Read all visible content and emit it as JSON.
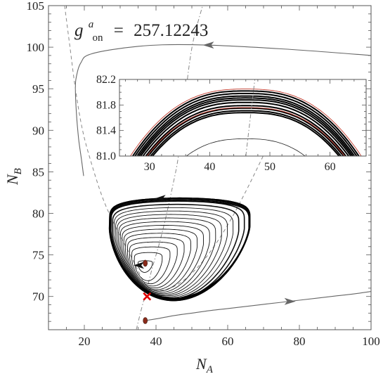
{
  "chart_data": {
    "type": "line",
    "title": "",
    "annotation": {
      "symbol": "g",
      "superscript": "a",
      "subscript": "on",
      "equals": "=",
      "value": "257.12243"
    },
    "xlabel": {
      "symbol": "N",
      "subscript": "A"
    },
    "ylabel": {
      "symbol": "N",
      "subscript": "B"
    },
    "xlim": [
      10,
      100
    ],
    "ylim": [
      66,
      105
    ],
    "xticks": [
      "20",
      "40",
      "60",
      "80",
      "100"
    ],
    "yticks": [
      "70",
      "75",
      "80",
      "85",
      "90",
      "95",
      "100",
      "105"
    ],
    "grid": false,
    "series": [
      {
        "role": "outer-trajectory-top",
        "style": "solid-gray-arrow-left",
        "x": [
          100,
          75,
          50,
          35,
          22,
          19,
          17.8,
          17.5,
          17.8,
          18.4,
          19.2,
          19.8
        ],
        "y": [
          99,
          99.8,
          100.3,
          100.1,
          99.2,
          98.1,
          96.5,
          95,
          92,
          89,
          86.5,
          84.5
        ]
      },
      {
        "role": "outer-trajectory-bottom",
        "style": "solid-gray-arrow-right",
        "x": [
          37,
          40,
          45,
          50,
          55,
          60,
          65,
          70,
          75,
          80,
          85,
          90,
          95,
          100
        ],
        "y": [
          67.1,
          67.3,
          67.7,
          68.0,
          68.3,
          68.55,
          68.8,
          69.05,
          69.3,
          69.55,
          69.8,
          70.05,
          70.3,
          70.6
        ]
      },
      {
        "role": "nullcline-dashed",
        "style": "dashed-gray",
        "x": [
          14.5,
          16,
          17.5,
          19.5,
          22,
          25,
          28,
          31,
          34,
          37,
          40,
          45,
          50,
          55,
          60,
          65,
          70
        ],
        "y": [
          105,
          100,
          95,
          90,
          86,
          82,
          79,
          76.5,
          74,
          71.5,
          70.7,
          71.2,
          72.8,
          75.3,
          78.6,
          82.6,
          87
        ]
      },
      {
        "role": "nullcline-dashdot",
        "style": "dashdot-gray",
        "x": [
          34.5,
          36,
          37.5,
          39,
          41,
          43,
          45,
          46,
          47,
          48,
          49,
          50.5,
          53
        ],
        "y": [
          66,
          68.6,
          71,
          73.5,
          76.5,
          80,
          84,
          86.2,
          89.2,
          93,
          97,
          101,
          105
        ]
      },
      {
        "role": "limit-cycle",
        "style": "solid-black-thick",
        "cx": 46.5,
        "top": 81.85,
        "bottom": 69.5,
        "left": 27,
        "right": 66.2,
        "skew": 0.18
      }
    ],
    "spiral_loops": 16,
    "points": [
      {
        "label": "stable-fixed-point",
        "x": 37,
        "y": 74,
        "marker": "dot",
        "color": "#8b2a1a"
      },
      {
        "label": "saddle-point",
        "x": 37.5,
        "y": 70,
        "marker": "x",
        "color": "#e00000"
      },
      {
        "label": "starting-point",
        "x": 37,
        "y": 67.1,
        "marker": "dot",
        "color": "#8b2a1a"
      }
    ],
    "inset": {
      "xlim": [
        25,
        66
      ],
      "ylim": [
        81.0,
        82.2
      ],
      "xticks": [
        "30",
        "40",
        "50",
        "60"
      ],
      "yticks": [
        "81.0",
        "81.4",
        "81.8",
        "82.2"
      ],
      "curves_black": [
        82.02,
        81.98,
        81.94,
        81.91,
        81.88,
        81.84,
        81.79,
        81.75,
        81.71,
        81.68
      ],
      "curves_red": [
        82.05,
        81.76
      ],
      "thin_arc_top": 81.27,
      "dashdot_x": [
        46,
        47.5
      ],
      "colors": {
        "cycle": "#000000",
        "outer": "#c0392b"
      }
    }
  }
}
